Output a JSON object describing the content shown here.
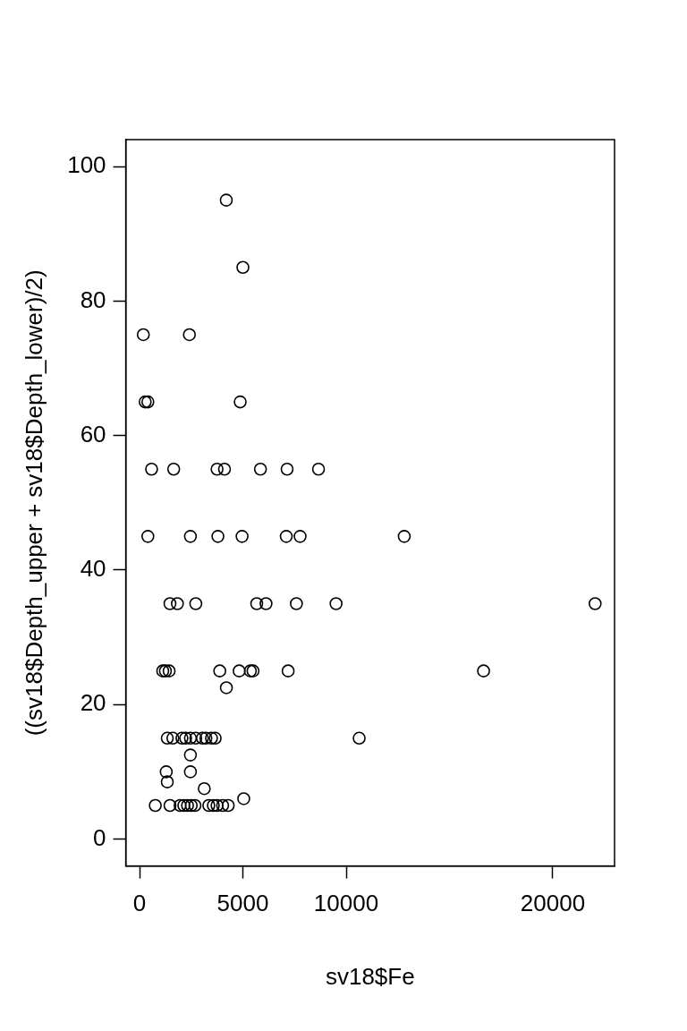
{
  "chart_data": {
    "type": "scatter",
    "x_label": "sv18$Fe",
    "y_label": "((sv18$Depth_upper + sv18$Depth_lower)/2)",
    "x": [
      4196,
      5000,
      180,
      2410,
      270,
      400,
      4870,
      580,
      1650,
      3750,
      4110,
      5850,
      7140,
      8660,
      400,
      2460,
      3790,
      4960,
      7100,
      7770,
      12810,
      1470,
      1830,
      2720,
      5670,
      6120,
      7590,
      9510,
      22050,
      1120,
      1250,
      1430,
      3880,
      4820,
      5360,
      5490,
      7190,
      16650,
      4200,
      1340,
      1610,
      2050,
      2230,
      2460,
      2720,
      3040,
      3210,
      3480,
      3660,
      10630,
      2460,
      1290,
      2460,
      1340,
      3130,
      5040,
      760,
      1470,
      1960,
      2140,
      2320,
      2500,
      2680,
      3350,
      3570,
      3750,
      4020,
      4290
    ],
    "values": [
      95,
      85,
      75,
      75,
      65,
      65,
      65,
      55,
      55,
      55,
      55,
      55,
      55,
      55,
      45,
      45,
      45,
      45,
      45,
      45,
      45,
      35,
      35,
      35,
      35,
      35,
      35,
      35,
      35,
      25,
      25,
      25,
      25,
      25,
      25,
      25,
      25,
      25,
      22.5,
      15,
      15,
      15,
      15,
      15,
      15,
      15,
      15,
      15,
      15,
      15,
      12.5,
      10,
      10,
      8.5,
      7.5,
      6,
      5,
      5,
      5,
      5,
      5,
      5,
      5,
      5,
      5,
      5,
      5,
      5
    ],
    "color": "#000000",
    "marker": "circle",
    "xlim": [
      -670,
      22990
    ],
    "ylim": [
      -4,
      104
    ],
    "xticks": [
      0,
      5000,
      10000,
      20000
    ],
    "yticks": [
      0,
      20,
      40,
      60,
      80,
      100
    ],
    "grid": false
  }
}
